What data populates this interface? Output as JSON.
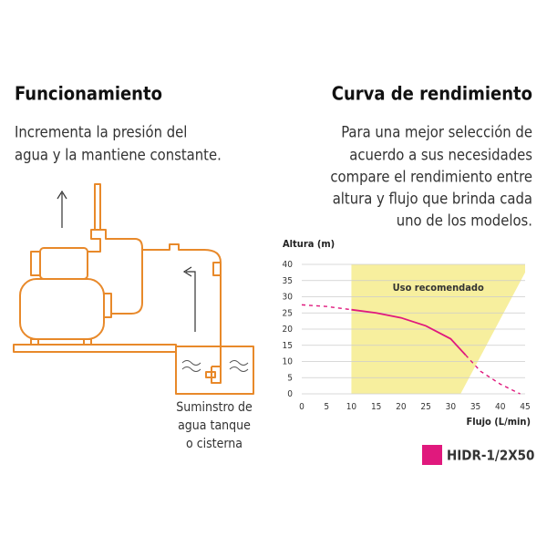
{
  "left": {
    "title": "Funcionamiento",
    "text_lines": [
      "Incrementa la presión del",
      "agua y la mantiene constante."
    ],
    "caption_lines": [
      "Suminstro de",
      "agua tanque",
      "o cisterna"
    ]
  },
  "right": {
    "title": "Curva de rendimiento",
    "text_lines": [
      "Para una mejor selección de",
      "acuerdo a sus necesidades",
      "compare el rendimiento entre",
      "altura y flujo que brinda cada",
      "uno de los modelos."
    ]
  },
  "chart_data": {
    "type": "line",
    "y_label": "Altura (m)",
    "x_label": "Flujo (L/min)",
    "xlim": [
      0,
      45
    ],
    "ylim": [
      0,
      40
    ],
    "xticks": [
      0,
      5,
      10,
      15,
      20,
      25,
      30,
      35,
      40,
      45
    ],
    "yticks": [
      0,
      5,
      10,
      15,
      20,
      25,
      30,
      35,
      40
    ],
    "grid": true,
    "recommended_area": {
      "label": "Uso recomendado",
      "color": "#f7ef9e",
      "x": [
        10,
        10,
        45,
        45,
        32
      ],
      "y": [
        0,
        40,
        40,
        37.5,
        0
      ]
    },
    "series": [
      {
        "name": "HIDR-1/2X50",
        "color": "#e0197d",
        "solid_x": [
          10,
          33
        ],
        "x": [
          0,
          5,
          10,
          15,
          20,
          25,
          30,
          33,
          36,
          40,
          44
        ],
        "values": [
          27.5,
          27,
          26,
          25,
          23.5,
          21,
          17,
          12,
          7,
          3,
          0
        ]
      }
    ]
  }
}
